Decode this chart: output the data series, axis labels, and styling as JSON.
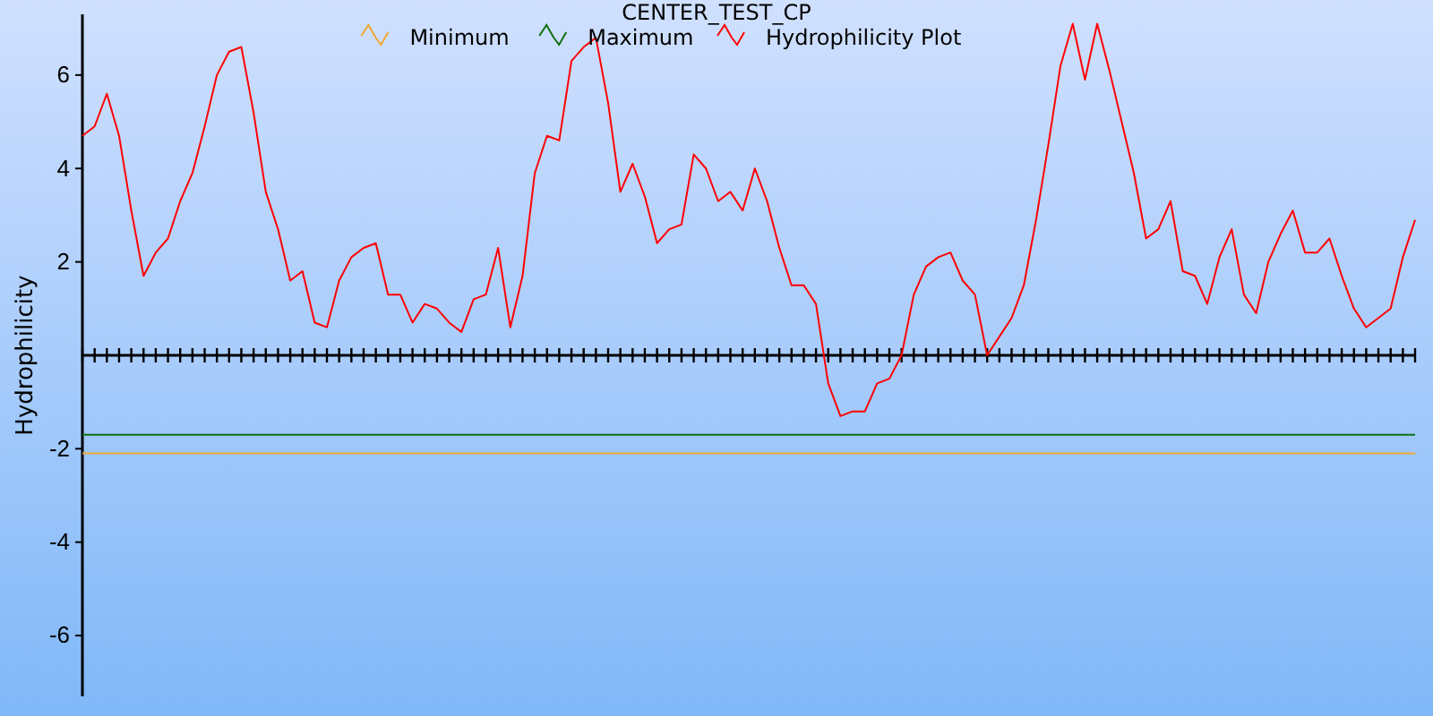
{
  "chart_data": {
    "type": "line",
    "title": "CENTER_TEST_CP",
    "ylabel": "Hydrophilicity",
    "categories": [
      null,
      null,
      null,
      null,
      null,
      null,
      null,
      null,
      null,
      null,
      null,
      null,
      null,
      null,
      null,
      null,
      null,
      null,
      null,
      null,
      null,
      null,
      null,
      null,
      null,
      null,
      null,
      null,
      null,
      null,
      null,
      null,
      null,
      null,
      null,
      null,
      null,
      null,
      null,
      null,
      null,
      null,
      null,
      null,
      null,
      null,
      null,
      null,
      null,
      null,
      null,
      null,
      null,
      null,
      null,
      null,
      null,
      null,
      null,
      null,
      null,
      null,
      null,
      null,
      null,
      null,
      null,
      null,
      null,
      null,
      null,
      null,
      null,
      null,
      null,
      null,
      null,
      null,
      null,
      null,
      null,
      null,
      null,
      null,
      null,
      null,
      null,
      null,
      null,
      null,
      null,
      null,
      null,
      null,
      null,
      null,
      null,
      null,
      null,
      null,
      null,
      null,
      null,
      null,
      null,
      null,
      null,
      null,
      null,
      null
    ],
    "series": [
      {
        "name": "Minimum",
        "color": "#f0a830",
        "values": [
          -2.1,
          -2.1,
          -2.1,
          -2.1,
          -2.1,
          -2.1,
          -2.1,
          -2.1,
          -2.1,
          -2.1,
          -2.1,
          -2.1,
          -2.1,
          -2.1,
          -2.1,
          -2.1,
          -2.1,
          -2.1,
          -2.1,
          -2.1,
          -2.1,
          -2.1,
          -2.1,
          -2.1,
          -2.1,
          -2.1,
          -2.1,
          -2.1,
          -2.1,
          -2.1,
          -2.1,
          -2.1,
          -2.1,
          -2.1,
          -2.1,
          -2.1,
          -2.1,
          -2.1,
          -2.1,
          -2.1,
          -2.1,
          -2.1,
          -2.1,
          -2.1,
          -2.1,
          -2.1,
          -2.1,
          -2.1,
          -2.1,
          -2.1,
          -2.1,
          -2.1,
          -2.1,
          -2.1,
          -2.1,
          -2.1,
          -2.1,
          -2.1,
          -2.1,
          -2.1,
          -2.1,
          -2.1,
          -2.1,
          -2.1,
          -2.1,
          -2.1,
          -2.1,
          -2.1,
          -2.1,
          -2.1,
          -2.1,
          -2.1,
          -2.1,
          -2.1,
          -2.1,
          -2.1,
          -2.1,
          -2.1,
          -2.1,
          -2.1,
          -2.1,
          -2.1,
          -2.1,
          -2.1,
          -2.1,
          -2.1,
          -2.1,
          -2.1,
          -2.1,
          -2.1,
          -2.1,
          -2.1,
          -2.1,
          -2.1,
          -2.1,
          -2.1,
          -2.1,
          -2.1,
          -2.1,
          -2.1,
          -2.1,
          -2.1,
          -2.1,
          -2.1,
          -2.1,
          -2.1,
          -2.1,
          -2.1,
          -2.1,
          -2.1
        ]
      },
      {
        "name": "Maximum",
        "color": "#107010",
        "values": [
          -1.7,
          -1.7,
          -1.7,
          -1.7,
          -1.7,
          -1.7,
          -1.7,
          -1.7,
          -1.7,
          -1.7,
          -1.7,
          -1.7,
          -1.7,
          -1.7,
          -1.7,
          -1.7,
          -1.7,
          -1.7,
          -1.7,
          -1.7,
          -1.7,
          -1.7,
          -1.7,
          -1.7,
          -1.7,
          -1.7,
          -1.7,
          -1.7,
          -1.7,
          -1.7,
          -1.7,
          -1.7,
          -1.7,
          -1.7,
          -1.7,
          -1.7,
          -1.7,
          -1.7,
          -1.7,
          -1.7,
          -1.7,
          -1.7,
          -1.7,
          -1.7,
          -1.7,
          -1.7,
          -1.7,
          -1.7,
          -1.7,
          -1.7,
          -1.7,
          -1.7,
          -1.7,
          -1.7,
          -1.7,
          -1.7,
          -1.7,
          -1.7,
          -1.7,
          -1.7,
          -1.7,
          -1.7,
          -1.7,
          -1.7,
          -1.7,
          -1.7,
          -1.7,
          -1.7,
          -1.7,
          -1.7,
          -1.7,
          -1.7,
          -1.7,
          -1.7,
          -1.7,
          -1.7,
          -1.7,
          -1.7,
          -1.7,
          -1.7,
          -1.7,
          -1.7,
          -1.7,
          -1.7,
          -1.7,
          -1.7,
          -1.7,
          -1.7,
          -1.7,
          -1.7,
          -1.7,
          -1.7,
          -1.7,
          -1.7,
          -1.7,
          -1.7,
          -1.7,
          -1.7,
          -1.7,
          -1.7,
          -1.7,
          -1.7,
          -1.7,
          -1.7,
          -1.7,
          -1.7,
          -1.7,
          -1.7,
          -1.7,
          -1.7
        ]
      },
      {
        "name": "Hydrophilicity Plot",
        "color": "#ff0000",
        "values": [
          4.7,
          4.9,
          5.6,
          4.7,
          3.1,
          1.7,
          2.2,
          2.5,
          3.3,
          3.9,
          4.9,
          6.0,
          6.5,
          6.6,
          5.2,
          3.5,
          2.7,
          1.6,
          1.8,
          0.7,
          0.6,
          1.6,
          2.1,
          2.3,
          2.4,
          1.3,
          1.3,
          0.7,
          1.1,
          1.0,
          0.7,
          0.5,
          1.2,
          1.3,
          2.3,
          0.6,
          1.7,
          3.9,
          4.7,
          4.6,
          6.3,
          6.6,
          6.8,
          5.4,
          3.5,
          4.1,
          3.4,
          2.4,
          2.7,
          2.8,
          4.3,
          4.0,
          3.3,
          3.5,
          3.1,
          4.0,
          3.3,
          2.3,
          1.5,
          1.5,
          1.1,
          -0.6,
          -1.3,
          -1.2,
          -1.2,
          -0.6,
          -0.5,
          0.0,
          1.3,
          1.9,
          2.1,
          2.2,
          1.6,
          1.3,
          0.0,
          0.4,
          0.8,
          1.5,
          2.9,
          4.5,
          6.2,
          7.1,
          5.9,
          7.1,
          6.1,
          5.0,
          3.9,
          2.5,
          2.7,
          3.3,
          1.8,
          1.7,
          1.1,
          2.1,
          2.7,
          1.3,
          0.9,
          2.0,
          2.6,
          3.1,
          2.2,
          2.2,
          2.5,
          1.7,
          1.0,
          0.6,
          0.8,
          1.0,
          2.1,
          2.9
        ]
      }
    ],
    "ylim": [
      -7.3,
      7.3
    ],
    "yticks": [
      -6,
      -4,
      -2,
      2,
      4,
      6
    ],
    "tick_labels": "y",
    "legend": "top",
    "grid": false,
    "marker": "none",
    "line_style": "solid"
  }
}
